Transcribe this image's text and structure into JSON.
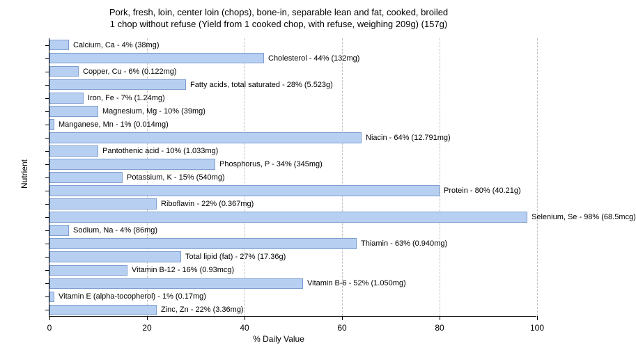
{
  "title_line1": "Pork, fresh, loin, center loin (chops), bone-in, separable lean and fat, cooked, broiled",
  "title_line2": "1 chop without refuse (Yield from 1 cooked chop, with refuse, weighing 209g) (157g)",
  "x_axis_label": "% Daily Value",
  "y_axis_label": "Nutrient",
  "chart": {
    "type": "bar-horizontal",
    "xlim": [
      0,
      100
    ],
    "xtick_step": 20,
    "bar_fill": "#b7cff1",
    "bar_border": "#7f9fd1",
    "grid_color": "#c0c0c0",
    "background_color": "#ffffff",
    "label_fontsize": 11,
    "title_fontsize": 13,
    "axis_fontsize": 12
  },
  "xticks": [
    {
      "v": 0,
      "label": "0"
    },
    {
      "v": 20,
      "label": "20"
    },
    {
      "v": 40,
      "label": "40"
    },
    {
      "v": 60,
      "label": "60"
    },
    {
      "v": 80,
      "label": "80"
    },
    {
      "v": 100,
      "label": "100"
    }
  ],
  "nutrients": [
    {
      "value": 4,
      "label": "Calcium, Ca - 4% (38mg)"
    },
    {
      "value": 44,
      "label": "Cholesterol - 44% (132mg)"
    },
    {
      "value": 6,
      "label": "Copper, Cu - 6% (0.122mg)"
    },
    {
      "value": 28,
      "label": "Fatty acids, total saturated - 28% (5.523g)"
    },
    {
      "value": 7,
      "label": "Iron, Fe - 7% (1.24mg)"
    },
    {
      "value": 10,
      "label": "Magnesium, Mg - 10% (39mg)"
    },
    {
      "value": 1,
      "label": "Manganese, Mn - 1% (0.014mg)"
    },
    {
      "value": 64,
      "label": "Niacin - 64% (12.791mg)"
    },
    {
      "value": 10,
      "label": "Pantothenic acid - 10% (1.033mg)"
    },
    {
      "value": 34,
      "label": "Phosphorus, P - 34% (345mg)"
    },
    {
      "value": 15,
      "label": "Potassium, K - 15% (540mg)"
    },
    {
      "value": 80,
      "label": "Protein - 80% (40.21g)"
    },
    {
      "value": 22,
      "label": "Riboflavin - 22% (0.367mg)"
    },
    {
      "value": 98,
      "label": "Selenium, Se - 98% (68.5mcg)"
    },
    {
      "value": 4,
      "label": "Sodium, Na - 4% (86mg)"
    },
    {
      "value": 63,
      "label": "Thiamin - 63% (0.940mg)"
    },
    {
      "value": 27,
      "label": "Total lipid (fat) - 27% (17.36g)"
    },
    {
      "value": 16,
      "label": "Vitamin B-12 - 16% (0.93mcg)"
    },
    {
      "value": 52,
      "label": "Vitamin B-6 - 52% (1.050mg)"
    },
    {
      "value": 1,
      "label": "Vitamin E (alpha-tocopherol) - 1% (0.17mg)"
    },
    {
      "value": 22,
      "label": "Zinc, Zn - 22% (3.36mg)"
    }
  ]
}
